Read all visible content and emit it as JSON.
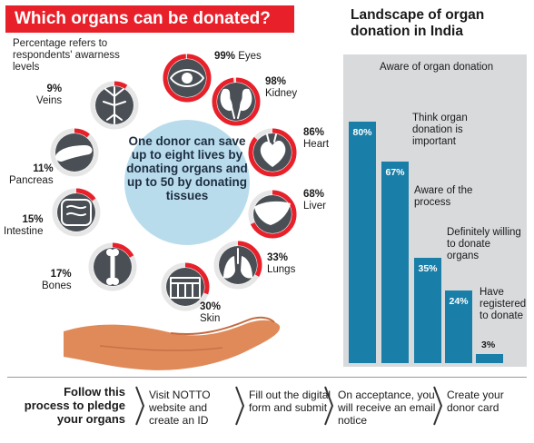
{
  "header": {
    "title": "Which organs can be donated?"
  },
  "note": "Percentage refers to respondents' awarness levels",
  "center": {
    "text": "One donor can save up to eight lives by donating organs and up to 50 by donating tissues"
  },
  "organs": [
    {
      "pct": "99%",
      "name": "Eyes",
      "icon": "eye-icon",
      "value": 99
    },
    {
      "pct": "98%",
      "name": "Kidney",
      "icon": "kidney-icon",
      "value": 98
    },
    {
      "pct": "86%",
      "name": "Heart",
      "icon": "heart-icon",
      "value": 86
    },
    {
      "pct": "68%",
      "name": "Liver",
      "icon": "liver-icon",
      "value": 68
    },
    {
      "pct": "33%",
      "name": "Lungs",
      "icon": "lungs-icon",
      "value": 33
    },
    {
      "pct": "30%",
      "name": "Skin",
      "icon": "skin-icon",
      "value": 30
    },
    {
      "pct": "17%",
      "name": "Bones",
      "icon": "bone-icon",
      "value": 17
    },
    {
      "pct": "15%",
      "name": "Intestine",
      "icon": "intestine-icon",
      "value": 15
    },
    {
      "pct": "11%",
      "name": "Pancreas",
      "icon": "pancreas-icon",
      "value": 11
    },
    {
      "pct": "9%",
      "name": "Veins",
      "icon": "veins-icon",
      "value": 9
    }
  ],
  "chart_data": {
    "type": "bar",
    "title": "Landscape of organ donation in India",
    "categories": [
      "Aware of organ donation",
      "Think organ donation is important",
      "Aware of the process",
      "Definitely willing to donate organs",
      "Have registered to donate"
    ],
    "values": [
      80,
      67,
      35,
      24,
      3
    ],
    "value_labels": [
      "80%",
      "67%",
      "35%",
      "24%",
      "3%"
    ],
    "ylim": [
      0,
      100
    ],
    "grid": false,
    "bar_color": "#1a7fa8"
  },
  "process": {
    "heading": "Follow this process to pledge your organs",
    "steps": [
      "Visit NOTTO website and create an ID",
      "Fill out the digital form and submit",
      "On acceptance, you will receive an email notice",
      "Create your donor card"
    ]
  },
  "colors": {
    "accent_red": "#e8202a",
    "organ_circle": "#4a4f55",
    "center_circle": "#b9dcec",
    "hand": "#e08a5a"
  }
}
